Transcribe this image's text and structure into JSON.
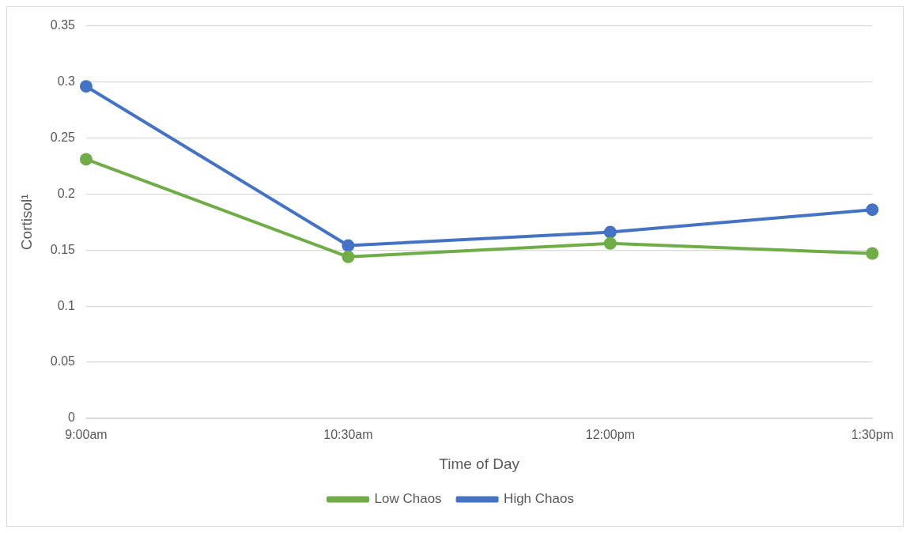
{
  "chart_data": {
    "type": "line",
    "xlabel": "Time of Day",
    "ylabel": "Cortisol¹",
    "categories": [
      "9:00am",
      "10:30am",
      "12:00pm",
      "1:30pm"
    ],
    "series": [
      {
        "name": "Low Chaos",
        "color": "#70ad47",
        "values": [
          0.231,
          0.144,
          0.156,
          0.147
        ]
      },
      {
        "name": "High Chaos",
        "color": "#4472c4",
        "values": [
          0.296,
          0.154,
          0.166,
          0.186
        ]
      }
    ],
    "ylim": [
      0,
      0.35
    ],
    "yticks": [
      0,
      0.05,
      0.1,
      0.15,
      0.2,
      0.25,
      0.3,
      0.35
    ],
    "grid": "y",
    "legend": "bottom",
    "marker": "circle",
    "line_style": "solid"
  }
}
